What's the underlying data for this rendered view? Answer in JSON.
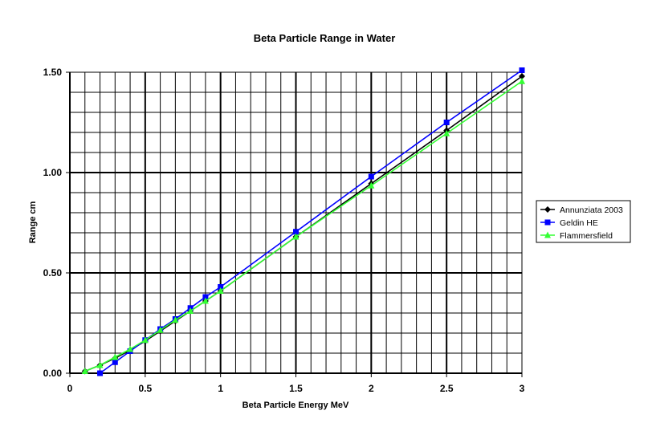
{
  "chart_data": {
    "type": "line",
    "title": "Beta Particle Range in Water",
    "xlabel": "Beta Particle Energy MeV",
    "ylabel": "Range cm",
    "xlim": [
      0,
      3
    ],
    "ylim": [
      0,
      1.5
    ],
    "x_ticks": [
      "0",
      "0.5",
      "1",
      "1.5",
      "2",
      "2.5",
      "3"
    ],
    "y_ticks": [
      "0.00",
      "0.50",
      "1.00",
      "1.50"
    ],
    "grid": true,
    "legend_position": "right",
    "series": [
      {
        "name": "Annunziata 2003",
        "color": "#000000",
        "marker": "diamond",
        "points": [
          [
            0.1,
            0.01
          ],
          [
            0.2,
            0.04
          ],
          [
            0.3,
            0.075
          ],
          [
            0.4,
            0.115
          ],
          [
            0.5,
            0.16
          ],
          [
            0.6,
            0.21
          ],
          [
            0.7,
            0.26
          ],
          [
            0.8,
            0.31
          ],
          [
            0.9,
            0.36
          ],
          [
            1.0,
            0.41
          ],
          [
            1.5,
            0.68
          ],
          [
            2.0,
            0.945
          ],
          [
            2.5,
            1.21
          ],
          [
            3.0,
            1.48
          ]
        ]
      },
      {
        "name": "Geldin HE",
        "color": "#0000ff",
        "marker": "square",
        "points": [
          [
            0.2,
            0.0
          ],
          [
            0.3,
            0.055
          ],
          [
            0.4,
            0.11
          ],
          [
            0.5,
            0.165
          ],
          [
            0.6,
            0.22
          ],
          [
            0.7,
            0.27
          ],
          [
            0.8,
            0.325
          ],
          [
            0.9,
            0.38
          ],
          [
            1.0,
            0.43
          ],
          [
            1.5,
            0.705
          ],
          [
            2.0,
            0.98
          ],
          [
            2.5,
            1.25
          ],
          [
            3.0,
            1.51
          ]
        ]
      },
      {
        "name": "Flammersfield",
        "color": "#33ff33",
        "marker": "triangle",
        "points": [
          [
            0.1,
            0.01
          ],
          [
            0.2,
            0.04
          ],
          [
            0.3,
            0.08
          ],
          [
            0.4,
            0.12
          ],
          [
            0.5,
            0.165
          ],
          [
            0.6,
            0.215
          ],
          [
            0.7,
            0.265
          ],
          [
            0.8,
            0.31
          ],
          [
            0.9,
            0.36
          ],
          [
            1.0,
            0.41
          ],
          [
            1.5,
            0.68
          ],
          [
            2.0,
            0.935
          ],
          [
            2.5,
            1.195
          ],
          [
            3.0,
            1.455
          ]
        ]
      }
    ]
  }
}
